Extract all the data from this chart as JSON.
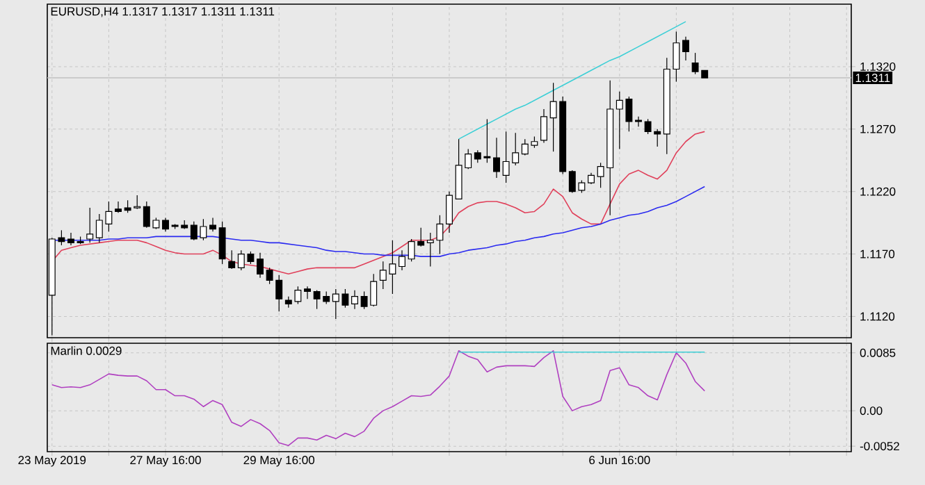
{
  "chart_data": [
    {
      "type": "candlestick",
      "title": "EURUSD,H4 1.1317 1.1317 1.1311 1.1311",
      "categories": [
        null,
        null,
        null,
        null,
        null,
        null,
        null,
        null,
        null,
        null,
        null,
        null,
        null,
        null,
        null,
        null,
        null,
        null,
        null,
        null,
        null,
        null,
        null,
        null,
        null,
        null,
        null,
        null,
        null,
        null,
        null,
        null,
        null,
        null,
        null,
        null,
        null,
        null,
        null,
        null,
        null,
        null,
        null,
        null,
        null,
        null,
        null,
        null,
        null,
        null,
        null,
        null,
        null,
        null,
        null,
        null,
        null,
        null,
        null,
        null,
        null,
        null,
        null,
        null,
        null,
        null,
        null,
        null,
        null,
        null
      ],
      "ohlc": [
        [
          1.1137,
          1.1183,
          1.1105,
          1.1182
        ],
        [
          1.1183,
          1.1189,
          1.1177,
          1.118
        ],
        [
          1.1182,
          1.1187,
          1.1177,
          1.1179
        ],
        [
          1.118,
          1.1184,
          1.1178,
          1.1179
        ],
        [
          1.1182,
          1.1207,
          1.1179,
          1.1186
        ],
        [
          1.1183,
          1.1202,
          1.1179,
          1.1197
        ],
        [
          1.1194,
          1.1212,
          1.1188,
          1.1204
        ],
        [
          1.1206,
          1.1212,
          1.1203,
          1.1204
        ],
        [
          1.1207,
          1.1213,
          1.1203,
          1.1205
        ],
        [
          1.1207,
          1.1217,
          1.1206,
          1.1208
        ],
        [
          1.1208,
          1.1212,
          1.1191,
          1.1192
        ],
        [
          1.1191,
          1.1199,
          1.119,
          1.1197
        ],
        [
          1.1197,
          1.1199,
          1.1188,
          1.119
        ],
        [
          1.1193,
          1.1194,
          1.119,
          1.1192
        ],
        [
          1.1193,
          1.1197,
          1.119,
          1.1191
        ],
        [
          1.1193,
          1.1196,
          1.1181,
          1.1182
        ],
        [
          1.1183,
          1.1198,
          1.1181,
          1.1192
        ],
        [
          1.1193,
          1.1199,
          1.1188,
          1.119
        ],
        [
          1.1191,
          1.1196,
          1.1162,
          1.1166
        ],
        [
          1.1164,
          1.1173,
          1.1158,
          1.1159
        ],
        [
          1.1159,
          1.1173,
          1.1157,
          1.117
        ],
        [
          1.117,
          1.1172,
          1.1162,
          1.1164
        ],
        [
          1.1166,
          1.1171,
          1.1151,
          1.1154
        ],
        [
          1.1157,
          1.1159,
          1.1146,
          1.1149
        ],
        [
          1.1149,
          1.1153,
          1.1124,
          1.1134
        ],
        [
          1.1133,
          1.1136,
          1.1127,
          1.113
        ],
        [
          1.1132,
          1.1144,
          1.113,
          1.1141
        ],
        [
          1.1142,
          1.1144,
          1.1134,
          1.114
        ],
        [
          1.114,
          1.1141,
          1.1126,
          1.1134
        ],
        [
          1.1136,
          1.114,
          1.113,
          1.1132
        ],
        [
          1.1132,
          1.1142,
          1.1118,
          1.1138
        ],
        [
          1.1138,
          1.1142,
          1.1127,
          1.1129
        ],
        [
          1.113,
          1.1141,
          1.1126,
          1.1136
        ],
        [
          1.1136,
          1.114,
          1.1126,
          1.1128
        ],
        [
          1.1129,
          1.1154,
          1.1128,
          1.1148
        ],
        [
          1.1149,
          1.1164,
          1.1142,
          1.1157
        ],
        [
          1.1154,
          1.1181,
          1.1138,
          1.1162
        ],
        [
          1.116,
          1.1173,
          1.1157,
          1.1168
        ],
        [
          1.1166,
          1.1182,
          1.1164,
          1.118
        ],
        [
          1.118,
          1.1191,
          1.1176,
          1.1177
        ],
        [
          1.1179,
          1.1187,
          1.116,
          1.1181
        ],
        [
          1.1181,
          1.1201,
          1.117,
          1.1194
        ],
        [
          1.1194,
          1.122,
          1.1187,
          1.1217
        ],
        [
          1.1214,
          1.1262,
          1.1214,
          1.1241
        ],
        [
          1.1239,
          1.1254,
          1.1238,
          1.125
        ],
        [
          1.1251,
          1.1253,
          1.1243,
          1.1246
        ],
        [
          1.1248,
          1.1278,
          1.1243,
          1.1247
        ],
        [
          1.1247,
          1.1263,
          1.1231,
          1.1236
        ],
        [
          1.1233,
          1.1268,
          1.1227,
          1.1244
        ],
        [
          1.1243,
          1.1267,
          1.1241,
          1.1251
        ],
        [
          1.125,
          1.1262,
          1.1249,
          1.1258
        ],
        [
          1.1257,
          1.1264,
          1.1255,
          1.126
        ],
        [
          1.1261,
          1.1286,
          1.1259,
          1.128
        ],
        [
          1.1279,
          1.1307,
          1.1252,
          1.1292
        ],
        [
          1.1292,
          1.1296,
          1.1234,
          1.1236
        ],
        [
          1.1236,
          1.1237,
          1.1219,
          1.122
        ],
        [
          1.1221,
          1.1229,
          1.1219,
          1.1227
        ],
        [
          1.1227,
          1.1235,
          1.1226,
          1.1233
        ],
        [
          1.1232,
          1.1243,
          1.1223,
          1.124
        ],
        [
          1.1239,
          1.1309,
          1.1201,
          1.1286
        ],
        [
          1.1286,
          1.13,
          1.1254,
          1.1293
        ],
        [
          1.1294,
          1.1296,
          1.1268,
          1.1276
        ],
        [
          1.1277,
          1.128,
          1.1272,
          1.1276
        ],
        [
          1.1276,
          1.1278,
          1.1266,
          1.1268
        ],
        [
          1.1268,
          1.127,
          1.1256,
          1.1266
        ],
        [
          1.1266,
          1.1327,
          1.125,
          1.1318
        ],
        [
          1.1318,
          1.1348,
          1.1308,
          1.1339
        ],
        [
          1.1341,
          1.1344,
          1.1325,
          1.1332
        ],
        [
          1.1323,
          1.1331,
          1.1314,
          1.1316
        ],
        [
          1.1317,
          1.1317,
          1.1311,
          1.1311
        ]
      ],
      "series": [
        {
          "type": "line",
          "color": "#e0405a",
          "values": [
            1.1164,
            1.1173,
            1.1175,
            1.1177,
            1.1178,
            1.1179,
            1.118,
            1.1181,
            1.1181,
            1.1181,
            1.1179,
            1.1176,
            1.1173,
            1.1171,
            1.117,
            1.117,
            1.117,
            1.1173,
            1.1169,
            1.1164,
            1.1162,
            1.1161,
            1.116,
            1.1158,
            1.1156,
            1.1154,
            1.1156,
            1.1158,
            1.1159,
            1.1159,
            1.1159,
            1.1159,
            1.1159,
            1.1162,
            1.1165,
            1.1168,
            1.1171,
            1.1176,
            1.1181,
            1.1181,
            1.1181,
            1.1184,
            1.1192,
            1.1203,
            1.1208,
            1.1211,
            1.1212,
            1.1212,
            1.121,
            1.1207,
            1.1203,
            1.1204,
            1.121,
            1.1222,
            1.1216,
            1.1203,
            1.1198,
            1.1194,
            1.1194,
            1.121,
            1.1226,
            1.1234,
            1.1237,
            1.1233,
            1.123,
            1.1237,
            1.1251,
            1.126,
            1.1266,
            1.1268
          ]
        },
        {
          "type": "line",
          "color": "#2a2af0",
          "values": [
            1.1181,
            1.1181,
            1.1181,
            1.1181,
            1.1181,
            1.1181,
            1.1182,
            1.1182,
            1.1183,
            1.1183,
            1.1183,
            1.1184,
            1.1184,
            1.1184,
            1.1184,
            1.1184,
            1.1184,
            1.1184,
            1.1183,
            1.1182,
            1.1181,
            1.1181,
            1.118,
            1.1179,
            1.1179,
            1.1178,
            1.1177,
            1.1176,
            1.1175,
            1.1173,
            1.1172,
            1.1172,
            1.1171,
            1.117,
            1.117,
            1.1169,
            1.1169,
            1.1169,
            1.1169,
            1.1168,
            1.1168,
            1.1168,
            1.117,
            1.1171,
            1.1173,
            1.1174,
            1.1175,
            1.1177,
            1.1178,
            1.118,
            1.1181,
            1.1183,
            1.1184,
            1.1186,
            1.1187,
            1.1189,
            1.1191,
            1.1192,
            1.1194,
            1.1197,
            1.1199,
            1.1201,
            1.1202,
            1.1204,
            1.1207,
            1.1209,
            1.1212,
            1.1216,
            1.122,
            1.1224
          ]
        },
        {
          "type": "line",
          "color": "#3ccfd6",
          "values": [
            null,
            null,
            null,
            null,
            null,
            null,
            null,
            null,
            null,
            null,
            null,
            null,
            null,
            null,
            null,
            null,
            null,
            null,
            null,
            null,
            null,
            null,
            null,
            null,
            null,
            null,
            null,
            null,
            null,
            null,
            null,
            null,
            null,
            null,
            null,
            null,
            null,
            null,
            null,
            null,
            null,
            null,
            null,
            1.1262,
            1.1266,
            1.127,
            1.1274,
            1.1278,
            1.1282,
            1.1286,
            1.1289,
            1.1293,
            1.1297,
            1.1301,
            1.1305,
            1.1309,
            1.1313,
            1.1317,
            1.1321,
            1.1325,
            1.1328,
            1.1332,
            1.1336,
            1.134,
            1.1344,
            1.1348,
            1.1352,
            1.1356,
            null,
            null
          ]
        }
      ],
      "ref_lines": [
        {
          "axis": "y",
          "value": 1.1311,
          "label": "1.1311",
          "color": "#c0c0c0"
        }
      ],
      "ylim": [
        1.1103,
        1.137
      ],
      "yticks": [
        {
          "value": 1.112,
          "label": "1.1120"
        },
        {
          "value": 1.117,
          "label": "1.1170"
        },
        {
          "value": 1.122,
          "label": "1.1220"
        },
        {
          "value": 1.127,
          "label": "1.1270"
        },
        {
          "value": 1.132,
          "label": "1.1320"
        }
      ],
      "grid": true,
      "tick_labels": "y"
    },
    {
      "type": "line",
      "title": "Marlin 0.0029",
      "categories": [
        "23 May 2019",
        null,
        null,
        null,
        null,
        null,
        null,
        null,
        null,
        null,
        null,
        null,
        "27 May 16:00",
        null,
        null,
        null,
        null,
        null,
        null,
        null,
        null,
        null,
        null,
        null,
        "29 May 16:00",
        null,
        null,
        null,
        null,
        null,
        null,
        null,
        null,
        null,
        null,
        null,
        null,
        null,
        null,
        null,
        null,
        null,
        null,
        null,
        null,
        null,
        null,
        null,
        null,
        null,
        null,
        null,
        null,
        null,
        null,
        null,
        null,
        null,
        null,
        null,
        "6 Jun 16:00",
        null,
        null,
        null,
        null,
        null,
        null,
        null,
        null,
        null
      ],
      "series": [
        {
          "color": "#b040c0",
          "values": [
            0.0038,
            0.0034,
            0.0035,
            0.0034,
            0.0038,
            0.0046,
            0.0054,
            0.0052,
            0.0051,
            0.0051,
            0.0044,
            0.0031,
            0.0031,
            0.0022,
            0.0022,
            0.0017,
            0.0006,
            0.0015,
            0.0009,
            -0.0017,
            -0.0023,
            -0.0013,
            -0.0019,
            -0.0029,
            -0.0047,
            -0.0051,
            -0.004,
            -0.004,
            -0.0043,
            -0.0036,
            -0.0041,
            -0.0033,
            -0.0038,
            -0.003,
            -0.0011,
            0.0,
            0.0006,
            0.0014,
            0.0022,
            0.0021,
            0.0023,
            0.0036,
            0.0051,
            0.0088,
            0.008,
            0.0075,
            0.0057,
            0.0064,
            0.0066,
            0.0066,
            0.0066,
            0.0065,
            0.0078,
            0.0088,
            0.0021,
            0.0,
            0.0006,
            0.0009,
            0.0015,
            0.0059,
            0.0063,
            0.0038,
            0.0034,
            0.0022,
            0.0016,
            0.0053,
            0.0085,
            0.007,
            0.0043,
            0.0029
          ]
        },
        {
          "color": "#3ccfd6",
          "values": [
            null,
            null,
            null,
            null,
            null,
            null,
            null,
            null,
            null,
            null,
            null,
            null,
            null,
            null,
            null,
            null,
            null,
            null,
            null,
            null,
            null,
            null,
            null,
            null,
            null,
            null,
            null,
            null,
            null,
            null,
            null,
            null,
            null,
            null,
            null,
            null,
            null,
            null,
            null,
            null,
            null,
            null,
            null,
            0.0086,
            0.0086,
            0.0086,
            0.0086,
            0.0086,
            0.0086,
            0.0086,
            0.0086,
            0.0086,
            0.0086,
            0.0086,
            0.0086,
            0.0086,
            0.0086,
            0.0086,
            0.0086,
            0.0086,
            0.0086,
            0.0086,
            0.0086,
            0.0086,
            0.0086,
            0.0086,
            0.0086,
            0.0086,
            0.0086,
            0.0086
          ]
        }
      ],
      "ylim": [
        -0.006,
        0.0099
      ],
      "yticks": [
        {
          "value": -0.0052,
          "label": "-0.0052"
        },
        {
          "value": 0,
          "label": "0.00"
        },
        {
          "value": 0.0085,
          "label": "0.0085"
        }
      ],
      "grid": true
    }
  ]
}
